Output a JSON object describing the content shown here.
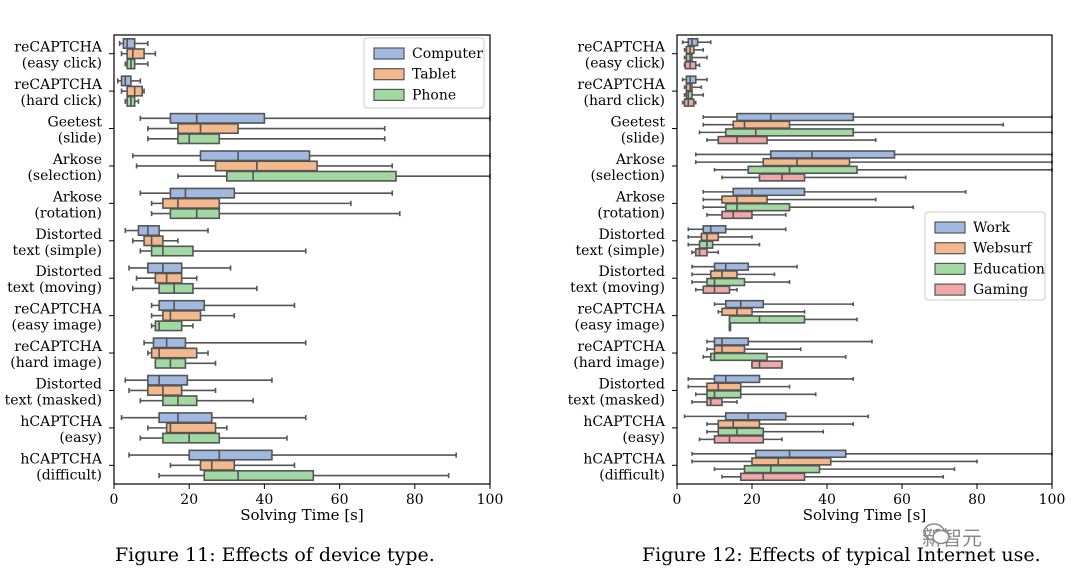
{
  "figures": [
    {
      "caption": "Figure 11: Effects of device type."
    },
    {
      "caption": "Figure 12: Effects of typical Internet use."
    }
  ],
  "watermark": {
    "text": "新智元"
  },
  "chart_data": [
    {
      "type": "boxplot",
      "orientation": "horizontal",
      "title": "",
      "xlabel": "Solving Time [s]",
      "xlim": [
        0,
        100
      ],
      "xticks": [
        0,
        20,
        40,
        60,
        80,
        100
      ],
      "grid": false,
      "legend_position": "top-right",
      "categories": [
        [
          "reCAPTCHA",
          "(easy click)"
        ],
        [
          "reCAPTCHA",
          "(hard click)"
        ],
        [
          "Geetest",
          "(slide)"
        ],
        [
          "Arkose",
          "(selection)"
        ],
        [
          "Arkose",
          "(rotation)"
        ],
        [
          "Distorted",
          "text (simple)"
        ],
        [
          "Distorted",
          "text (moving)"
        ],
        [
          "reCAPTCHA",
          "(easy image)"
        ],
        [
          "reCAPTCHA",
          "(hard image)"
        ],
        [
          "Distorted",
          "text (masked)"
        ],
        [
          "hCAPTCHA",
          "(easy)"
        ],
        [
          "hCAPTCHA",
          "(difficult)"
        ]
      ],
      "series": [
        {
          "name": "Computer",
          "color": "#a1b9e0",
          "stroke": "#5f7fb3",
          "boxes": [
            [
              1.5,
              2.5,
              3.5,
              5.5,
              9
            ],
            [
              1,
              2,
              3,
              4.5,
              7
            ],
            [
              7,
              15,
              22,
              40,
              100
            ],
            [
              5,
              23,
              33,
              52,
              100
            ],
            [
              7,
              15,
              19,
              32,
              74
            ],
            [
              3,
              6.5,
              9,
              12,
              25
            ],
            [
              4,
              9,
              13,
              18,
              31
            ],
            [
              10,
              12,
              16,
              24,
              48
            ],
            [
              8,
              10.5,
              14,
              19,
              51
            ],
            [
              3,
              9,
              12,
              19.5,
              42
            ],
            [
              2,
              12,
              17,
              26,
              51
            ],
            [
              4,
              20,
              28,
              42,
              91
            ]
          ]
        },
        {
          "name": "Tablet",
          "color": "#f4b88d",
          "stroke": "#c07d4d",
          "boxes": [
            [
              2,
              3.5,
              5,
              8,
              11
            ],
            [
              2,
              3.5,
              5.5,
              7.5,
              8
            ],
            [
              9,
              17,
              23,
              33,
              72
            ],
            [
              6,
              27,
              38,
              54,
              74
            ],
            [
              10,
              13,
              17,
              28,
              63
            ],
            [
              5,
              8,
              10,
              13,
              17
            ],
            [
              6,
              11,
              14,
              18,
              22
            ],
            [
              10,
              13,
              15,
              23,
              32
            ],
            [
              9,
              10,
              12,
              22,
              25
            ],
            [
              4,
              9,
              13,
              18,
              27
            ],
            [
              9,
              14,
              15,
              27,
              30
            ],
            [
              15,
              23,
              26,
              32,
              48
            ]
          ]
        },
        {
          "name": "Phone",
          "color": "#a2d8a2",
          "stroke": "#5e9e5e",
          "boxes": [
            [
              3,
              3.5,
              4.5,
              5.5,
              9
            ],
            [
              3,
              3.5,
              4.5,
              5.5,
              6.5
            ],
            [
              9,
              17,
              20,
              28,
              72
            ],
            [
              17,
              30,
              37,
              75,
              100
            ],
            [
              10,
              15,
              22,
              28,
              76
            ],
            [
              7,
              10,
              13,
              21,
              51
            ],
            [
              5,
              12,
              16,
              21,
              38
            ],
            [
              10,
              11,
              12,
              18,
              21
            ],
            [
              11,
              11,
              15,
              19,
              27
            ],
            [
              7,
              13,
              17,
              22,
              37
            ],
            [
              7,
              13,
              20,
              28,
              46
            ],
            [
              12,
              24,
              33,
              53,
              89
            ]
          ]
        }
      ]
    },
    {
      "type": "boxplot",
      "orientation": "horizontal",
      "title": "",
      "xlabel": "Solving Time [s]",
      "xlim": [
        0,
        100
      ],
      "xticks": [
        0,
        20,
        40,
        60,
        80,
        100
      ],
      "grid": false,
      "legend_position": "center-right",
      "categories": [
        [
          "reCAPTCHA",
          "(easy click)"
        ],
        [
          "reCAPTCHA",
          "(hard click)"
        ],
        [
          "Geetest",
          "(slide)"
        ],
        [
          "Arkose",
          "(selection)"
        ],
        [
          "Arkose",
          "(rotation)"
        ],
        [
          "Distorted",
          "text (simple)"
        ],
        [
          "Distorted",
          "text (moving)"
        ],
        [
          "reCAPTCHA",
          "(easy image)"
        ],
        [
          "reCAPTCHA",
          "(hard image)"
        ],
        [
          "Distorted",
          "text (masked)"
        ],
        [
          "hCAPTCHA",
          "(easy)"
        ],
        [
          "hCAPTCHA",
          "(difficult)"
        ]
      ],
      "series": [
        {
          "name": "Work",
          "color": "#a1b9e0",
          "stroke": "#5f7fb3",
          "boxes": [
            [
              1.5,
              3,
              4,
              5.5,
              9
            ],
            [
              1.5,
              2.5,
              3.5,
              5,
              8
            ],
            [
              7,
              16,
              25,
              47,
              100
            ],
            [
              5,
              25,
              36,
              58,
              100
            ],
            [
              7,
              15,
              20,
              34,
              77
            ],
            [
              3,
              7,
              9,
              13,
              29
            ],
            [
              4,
              10,
              13,
              19,
              32
            ],
            [
              10,
              13,
              17,
              23,
              47
            ],
            [
              8,
              10,
              12,
              19,
              52
            ],
            [
              3,
              10,
              13,
              22,
              47
            ],
            [
              2,
              13,
              19,
              29,
              51
            ],
            [
              4,
              21,
              30,
              45,
              100
            ]
          ]
        },
        {
          "name": "Websurf",
          "color": "#f4b88d",
          "stroke": "#c07d4d",
          "boxes": [
            [
              2,
              2.5,
              3.5,
              4.5,
              7
            ],
            [
              2,
              2.5,
              3.5,
              4,
              6.5
            ],
            [
              7,
              15,
              18,
              30,
              87
            ],
            [
              5,
              23,
              32,
              46,
              100
            ],
            [
              7,
              12,
              16,
              24,
              53
            ],
            [
              3,
              6.5,
              8,
              11,
              20
            ],
            [
              4,
              9,
              12,
              16,
              26
            ],
            [
              11,
              12,
              16,
              20,
              34
            ],
            [
              8,
              10,
              12,
              18,
              33
            ],
            [
              3,
              8,
              11,
              17,
              30
            ],
            [
              8,
              11,
              15,
              22,
              47
            ],
            [
              4,
              20,
              27,
              41,
              80
            ]
          ]
        },
        {
          "name": "Education",
          "color": "#a2d8a2",
          "stroke": "#5e9e5e",
          "boxes": [
            [
              2,
              2.5,
              3.5,
              4,
              8
            ],
            [
              2,
              2.5,
              3,
              4,
              7
            ],
            [
              6,
              13,
              21,
              47,
              100
            ],
            [
              10,
              19,
              30,
              48,
              100
            ],
            [
              7,
              13,
              16,
              30,
              63
            ],
            [
              3,
              6,
              8,
              9.5,
              22
            ],
            [
              4,
              8,
              10,
              18,
              30
            ],
            [
              14,
              14,
              22,
              34,
              48
            ],
            [
              7,
              9,
              10,
              24,
              45
            ],
            [
              5,
              8,
              10,
              17,
              37
            ],
            [
              8,
              11,
              16,
              23,
              39
            ],
            [
              10,
              18,
              25,
              38,
              74
            ]
          ]
        },
        {
          "name": "Gaming",
          "color": "#f1a7a7",
          "stroke": "#b86e6e",
          "boxes": [
            [
              2,
              2.2,
              3.5,
              5,
              6
            ],
            [
              1.5,
              2,
              3,
              4.5,
              5
            ],
            [
              8,
              11,
              16,
              24,
              53
            ],
            [
              12,
              22,
              28,
              34,
              61
            ],
            [
              8,
              12,
              15,
              20,
              29
            ],
            [
              4,
              5,
              6,
              8,
              11
            ],
            [
              5,
              7,
              10,
              14,
              16
            ],
            [
              14,
              14,
              14,
              14,
              14
            ],
            [
              20,
              20,
              22,
              28,
              28
            ],
            [
              4,
              8,
              9,
              12,
              16
            ],
            [
              6,
              10,
              14,
              23,
              28
            ],
            [
              12,
              17,
              23,
              34,
              71
            ]
          ]
        }
      ]
    }
  ]
}
